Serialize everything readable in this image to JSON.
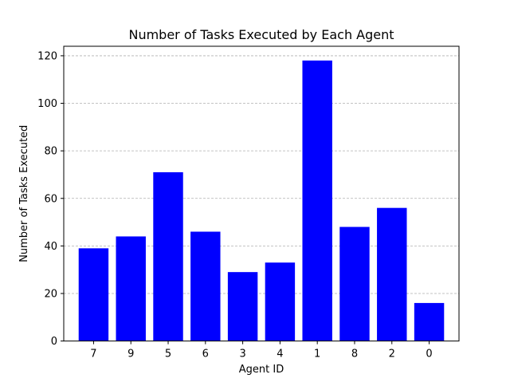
{
  "chart_data": {
    "type": "bar",
    "title": "Number of Tasks Executed by Each Agent",
    "xlabel": "Agent ID",
    "ylabel": "Number of Tasks Executed",
    "categories": [
      "7",
      "9",
      "5",
      "6",
      "3",
      "4",
      "1",
      "8",
      "2",
      "0"
    ],
    "values": [
      39,
      44,
      71,
      46,
      29,
      33,
      118,
      48,
      56,
      16
    ],
    "ylim": [
      0,
      124
    ],
    "yticks": [
      0,
      20,
      40,
      60,
      80,
      100,
      120
    ],
    "grid": "y-axis dashed",
    "bar_color": "#0000ff",
    "grid_color": "#b0b0b0"
  }
}
